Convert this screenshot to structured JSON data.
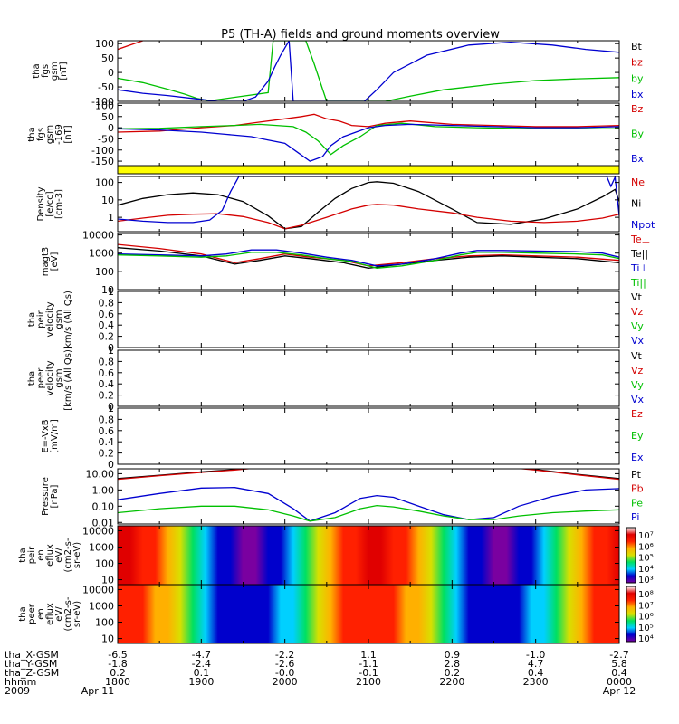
{
  "title": "P5 (TH-A) fields and ground moments overview",
  "chart_data": [
    {
      "type": "line",
      "ylabel": [
        "tha",
        "fgs",
        "gsm",
        "[nT]"
      ],
      "yticks": [
        100,
        50,
        0,
        -50,
        -100
      ],
      "ylim": [
        -100,
        110
      ],
      "legend": [
        {
          "name": "Bt",
          "color": "#000000"
        },
        {
          "name": "bz",
          "color": "#d40000"
        },
        {
          "name": "by",
          "color": "#00c000"
        },
        {
          "name": "bx",
          "color": "#0000d0"
        }
      ],
      "series": [
        {
          "name": "bz",
          "color": "#d40000",
          "x": [
            18.0,
            18.15,
            18.3
          ],
          "y": [
            80,
            95,
            110
          ]
        },
        {
          "name": "by",
          "color": "#00c000",
          "x": [
            18.0,
            18.3,
            18.6,
            18.8,
            18.95,
            19.1,
            19.8,
            19.86,
            20.25,
            20.35,
            20.5,
            21.2,
            21.5,
            21.9,
            22.5,
            23.0,
            23.5,
            24.0
          ],
          "y": [
            -20,
            -35,
            -58,
            -75,
            -90,
            -98,
            -70,
            110,
            110,
            30,
            -100,
            -100,
            -82,
            -60,
            -40,
            -28,
            -22,
            -18
          ]
        },
        {
          "name": "bx",
          "color": "#0000d0",
          "x": [
            18.0,
            18.3,
            18.6,
            18.9,
            19.2,
            19.5,
            19.65,
            19.8,
            19.88,
            19.95,
            20.05,
            20.1,
            20.5,
            20.95,
            21.1,
            21.3,
            21.7,
            22.2,
            22.7,
            23.2,
            23.6,
            24.0
          ],
          "y": [
            -60,
            -72,
            -80,
            -90,
            -100,
            -100,
            -85,
            -30,
            20,
            60,
            110,
            -100,
            -100,
            -100,
            -60,
            0,
            60,
            95,
            105,
            95,
            80,
            70
          ]
        }
      ]
    },
    {
      "type": "line",
      "ylabel": [
        "tha",
        "fgs",
        "gsm",
        "-169",
        "[nT]"
      ],
      "yticks": [
        100,
        50,
        0,
        -50,
        -100,
        -150
      ],
      "ylim": [
        -170,
        110
      ],
      "legend": [
        {
          "name": "Bz",
          "color": "#d40000"
        },
        {
          "name": "By",
          "color": "#00c000"
        },
        {
          "name": "Bx",
          "color": "#0000d0"
        }
      ],
      "series": [
        {
          "name": "Bz",
          "color": "#d40000",
          "x": [
            18.0,
            18.5,
            19.0,
            19.4,
            19.7,
            20.0,
            20.2,
            20.35,
            20.5,
            20.65,
            20.8,
            21.0,
            21.2,
            21.5,
            22.0,
            22.5,
            23.0,
            23.5,
            24.0
          ],
          "y": [
            -20,
            -15,
            0,
            10,
            25,
            40,
            50,
            60,
            40,
            30,
            10,
            5,
            20,
            30,
            15,
            10,
            5,
            5,
            10
          ]
        },
        {
          "name": "By",
          "color": "#00c000",
          "x": [
            18.0,
            18.5,
            19.0,
            19.4,
            19.7,
            19.9,
            20.1,
            20.25,
            20.4,
            20.55,
            20.7,
            20.9,
            21.1,
            21.4,
            21.8,
            22.3,
            23.0,
            24.0
          ],
          "y": [
            -5,
            -3,
            5,
            10,
            15,
            10,
            5,
            -20,
            -60,
            -120,
            -80,
            -40,
            10,
            20,
            5,
            0,
            -5,
            -5
          ]
        },
        {
          "name": "Bx",
          "color": "#0000d0",
          "x": [
            18.0,
            18.5,
            19.0,
            19.3,
            19.6,
            19.8,
            20.0,
            20.15,
            20.3,
            20.45,
            20.55,
            20.7,
            20.85,
            21.0,
            21.2,
            21.5,
            22.0,
            22.5,
            23.0,
            23.5,
            24.0
          ],
          "y": [
            -5,
            -10,
            -20,
            -30,
            -40,
            -55,
            -70,
            -110,
            -150,
            -130,
            -80,
            -40,
            -20,
            0,
            10,
            15,
            10,
            5,
            0,
            0,
            5
          ]
        }
      ]
    },
    {
      "type": "bar",
      "color": "#ffff00",
      "ylim": [
        0,
        1
      ]
    },
    {
      "type": "line",
      "yscale": "log",
      "ylabel": [
        "Density",
        "[e/cc]",
        "[cm-3]"
      ],
      "yticks": [
        100,
        10,
        1
      ],
      "ylim": [
        0.15,
        220
      ],
      "legend": [
        {
          "name": "Ne",
          "color": "#d40000"
        },
        {
          "name": "Ni",
          "color": "#000000"
        },
        {
          "name": "Npot",
          "color": "#0000d0"
        }
      ],
      "series": [
        {
          "name": "Ni",
          "color": "#000000",
          "x": [
            18.0,
            18.3,
            18.6,
            18.9,
            19.2,
            19.5,
            19.8,
            20.0,
            20.2,
            20.4,
            20.6,
            20.8,
            21.0,
            21.1,
            21.3,
            21.6,
            22.0,
            22.3,
            22.7,
            23.1,
            23.5,
            23.8,
            23.95,
            24.0
          ],
          "y": [
            5,
            12,
            20,
            25,
            20,
            8,
            1.2,
            0.22,
            0.3,
            2,
            12,
            45,
            100,
            110,
            90,
            30,
            3,
            0.5,
            0.4,
            0.8,
            3,
            15,
            40,
            8
          ]
        },
        {
          "name": "Ne",
          "color": "#d40000",
          "x": [
            18.0,
            18.3,
            18.6,
            18.9,
            19.2,
            19.5,
            19.8,
            20.0,
            20.2,
            20.5,
            20.8,
            21.0,
            21.1,
            21.3,
            21.6,
            22.0,
            22.3,
            22.7,
            23.1,
            23.5,
            23.8,
            24.0
          ],
          "y": [
            0.6,
            0.9,
            1.3,
            1.5,
            1.6,
            1.1,
            0.5,
            0.22,
            0.35,
            1.0,
            3.0,
            5.0,
            5.5,
            5.0,
            3.0,
            1.8,
            1.0,
            0.6,
            0.5,
            0.6,
            0.9,
            1.5
          ]
        },
        {
          "name": "Npot",
          "color": "#0000d0",
          "x": [
            18.0,
            18.3,
            18.6,
            18.9,
            19.1,
            19.25,
            19.35,
            19.45,
            23.85,
            23.9,
            23.95,
            24.0
          ],
          "y": [
            0.8,
            0.6,
            0.5,
            0.5,
            0.7,
            2.5,
            30,
            220,
            220,
            60,
            200,
            1.2
          ]
        }
      ]
    },
    {
      "type": "line",
      "yscale": "log",
      "ylabel": [
        "magt3",
        "[eV]"
      ],
      "yticks": [
        10000,
        1000,
        100,
        10
      ],
      "ylim": [
        10,
        12000
      ],
      "legend": [
        {
          "name": "Te⊥",
          "color": "#d40000"
        },
        {
          "name": "Te||",
          "color": "#000000"
        },
        {
          "name": "Ti⊥",
          "color": "#0000d0"
        },
        {
          "name": "Ti||",
          "color": "#00c000"
        }
      ],
      "series": [
        {
          "name": "Te⊥",
          "color": "#d40000",
          "x": [
            18.0,
            18.5,
            19.0,
            19.4,
            19.7,
            20.0,
            20.3,
            20.7,
            21.0,
            21.4,
            21.8,
            22.2,
            22.6,
            23.0,
            23.5,
            24.0
          ],
          "y": [
            3000,
            1800,
            900,
            300,
            500,
            900,
            600,
            400,
            200,
            300,
            500,
            700,
            800,
            700,
            600,
            400
          ]
        },
        {
          "name": "Te||",
          "color": "#000000",
          "x": [
            18.0,
            18.5,
            19.0,
            19.4,
            19.7,
            20.0,
            20.3,
            20.7,
            21.0,
            21.4,
            21.8,
            22.2,
            22.6,
            23.0,
            23.5,
            24.0
          ],
          "y": [
            2000,
            1300,
            700,
            250,
            400,
            700,
            500,
            300,
            150,
            250,
            400,
            600,
            700,
            600,
            500,
            300
          ]
        },
        {
          "name": "Ti⊥",
          "color": "#0000d0",
          "x": [
            18.0,
            18.5,
            19.0,
            19.3,
            19.6,
            19.9,
            20.2,
            20.5,
            20.8,
            21.1,
            21.4,
            21.8,
            22.1,
            22.3,
            22.6,
            23.0,
            23.5,
            23.8,
            24.0
          ],
          "y": [
            900,
            800,
            700,
            900,
            1500,
            1500,
            1000,
            600,
            400,
            200,
            250,
            500,
            1000,
            1400,
            1400,
            1300,
            1200,
            1000,
            600
          ]
        },
        {
          "name": "Ti||",
          "color": "#00c000",
          "x": [
            18.0,
            18.5,
            19.0,
            19.3,
            19.6,
            19.9,
            20.2,
            20.5,
            20.8,
            21.1,
            21.4,
            21.8,
            22.1,
            22.3,
            22.6,
            23.0,
            23.5,
            23.8,
            24.0
          ],
          "y": [
            800,
            700,
            600,
            700,
            1100,
            1100,
            800,
            500,
            350,
            150,
            200,
            400,
            800,
            1100,
            1100,
            1000,
            900,
            800,
            500
          ]
        }
      ]
    },
    {
      "type": "line",
      "ylabel": [
        "tha",
        "peir",
        "velocity",
        "gsm",
        "km/s (All Qs)"
      ],
      "yticks": [
        1.0,
        0.8,
        0.6,
        0.4,
        0.2,
        0.0
      ],
      "ylim": [
        0,
        1
      ],
      "legend": [
        {
          "name": "Vt",
          "color": "#000000"
        },
        {
          "name": "Vz",
          "color": "#d40000"
        },
        {
          "name": "Vy",
          "color": "#00c000"
        },
        {
          "name": "Vx",
          "color": "#0000d0"
        }
      ],
      "series": []
    },
    {
      "type": "line",
      "ylabel": [
        "tha",
        "peer",
        "velocity",
        "gsm",
        "[km/s (All Qs)]"
      ],
      "yticks": [
        1.0,
        0.8,
        0.6,
        0.4,
        0.2,
        0.0
      ],
      "ylim": [
        0,
        1
      ],
      "legend": [
        {
          "name": "Vt",
          "color": "#000000"
        },
        {
          "name": "Vz",
          "color": "#d40000"
        },
        {
          "name": "Vy",
          "color": "#00c000"
        },
        {
          "name": "Vx",
          "color": "#0000d0"
        }
      ],
      "series": []
    },
    {
      "type": "line",
      "ylabel": [
        "E=-VxB",
        "[mV/m]"
      ],
      "yticks": [
        1.0,
        0.8,
        0.6,
        0.4,
        0.2,
        0.0
      ],
      "ylim": [
        0,
        1
      ],
      "legend": [
        {
          "name": "Ez",
          "color": "#d40000"
        },
        {
          "name": "Ey",
          "color": "#00c000"
        },
        {
          "name": "Ex",
          "color": "#0000d0"
        }
      ],
      "series": []
    },
    {
      "type": "line",
      "yscale": "log",
      "ylabel": [
        "Pressure",
        "[nPa]"
      ],
      "yticks": [
        10.0,
        1.0,
        0.1,
        0.01
      ],
      "yticklabels": [
        "10.00",
        "1.00",
        "0.10",
        "0.01"
      ],
      "ylim": [
        0.008,
        20
      ],
      "legend": [
        {
          "name": "Pt",
          "color": "#000000"
        },
        {
          "name": "Pb",
          "color": "#d40000"
        },
        {
          "name": "Pe",
          "color": "#00c000"
        },
        {
          "name": "Pi",
          "color": "#0000d0"
        }
      ],
      "series": [
        {
          "name": "Pt",
          "color": "#000000",
          "x": [
            18.0,
            18.5,
            19.0,
            19.4,
            19.6,
            22.8,
            23.0,
            23.5,
            24.0
          ],
          "y": [
            5,
            8,
            13,
            18,
            22,
            22,
            18,
            9,
            5
          ]
        },
        {
          "name": "Pb",
          "color": "#d40000",
          "x": [
            18.0,
            18.5,
            19.0,
            19.4,
            19.6,
            22.8,
            23.0,
            23.5,
            24.0
          ],
          "y": [
            4.5,
            7.5,
            12,
            17,
            21,
            21,
            17,
            8.5,
            4.5
          ]
        },
        {
          "name": "Pi",
          "color": "#0000d0",
          "x": [
            18.0,
            18.5,
            19.0,
            19.4,
            19.8,
            20.1,
            20.3,
            20.6,
            20.9,
            21.1,
            21.3,
            21.6,
            21.9,
            22.2,
            22.5,
            22.8,
            23.2,
            23.6,
            24.0
          ],
          "y": [
            0.25,
            0.6,
            1.3,
            1.4,
            0.6,
            0.07,
            0.012,
            0.04,
            0.3,
            0.45,
            0.35,
            0.1,
            0.03,
            0.015,
            0.02,
            0.1,
            0.4,
            1.0,
            1.2
          ]
        },
        {
          "name": "Pe",
          "color": "#00c000",
          "x": [
            18.0,
            18.5,
            19.0,
            19.4,
            19.8,
            20.1,
            20.3,
            20.6,
            20.9,
            21.1,
            21.3,
            21.6,
            21.9,
            22.2,
            22.5,
            22.8,
            23.2,
            23.6,
            24.0
          ],
          "y": [
            0.04,
            0.07,
            0.1,
            0.1,
            0.06,
            0.025,
            0.012,
            0.02,
            0.07,
            0.11,
            0.09,
            0.05,
            0.025,
            0.015,
            0.015,
            0.025,
            0.04,
            0.05,
            0.06
          ]
        }
      ]
    },
    {
      "type": "heatmap",
      "ylabel": [
        "tha",
        "peir",
        "en",
        "eflux",
        "eV/",
        "(cm2-s-",
        "sr-eV)"
      ],
      "yticks": [
        10000,
        1000,
        100,
        10
      ],
      "colorbar_ticks": [
        "10⁷",
        "10⁶",
        "10⁵",
        "10⁴",
        "10³"
      ],
      "colormap": [
        "#7a00a0",
        "#0000cc",
        "#00d0ff",
        "#00e060",
        "#d8e000",
        "#ffb000",
        "#ff2000",
        "#e00000",
        "#ffffff"
      ]
    },
    {
      "type": "heatmap",
      "ylabel": [
        "tha",
        "peer",
        "en",
        "eflux",
        "eV/",
        "(cm2-s-",
        "sr-eV)"
      ],
      "yticks": [
        10000,
        1000,
        100,
        10
      ],
      "colorbar_ticks": [
        "10⁸",
        "10⁷",
        "10⁶",
        "10⁵",
        "10⁴"
      ],
      "colormap": [
        "#7a00a0",
        "#0000cc",
        "#00d0ff",
        "#00e060",
        "#d8e000",
        "#ffb000",
        "#ff2000",
        "#e00000",
        "#ffffff"
      ]
    }
  ],
  "x_axis": {
    "rows": [
      {
        "label": "tha_X-GSM",
        "values": [
          "-6.5",
          "-4.7",
          "-2.2",
          "1.1",
          "0.9",
          "-1.0",
          "-2.7"
        ]
      },
      {
        "label": "tha_Y-GSM",
        "values": [
          "-1.8",
          "-2.4",
          "-2.6",
          "-1.1",
          "2.8",
          "4.7",
          "5.8"
        ]
      },
      {
        "label": "tha_Z-GSM",
        "values": [
          "0.2",
          "0.1",
          "-0.0",
          "-0.1",
          "0.2",
          "0.4",
          "0.4"
        ]
      },
      {
        "label": "hhmm",
        "values": [
          "1800",
          "1900",
          "2000",
          "2100",
          "2200",
          "2300",
          "0000"
        ]
      }
    ],
    "year": "2009",
    "date_start": "Apr 11",
    "date_end": "Apr 12"
  }
}
